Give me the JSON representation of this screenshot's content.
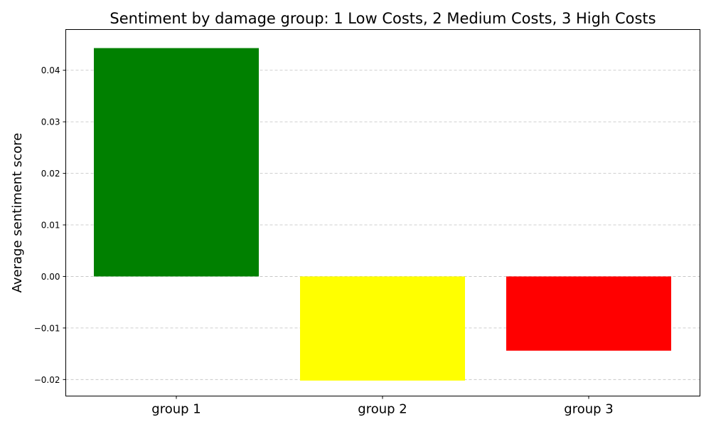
{
  "chart_data": {
    "type": "bar",
    "title": "Sentiment by damage group: 1 Low Costs, 2 Medium Costs, 3 High Costs",
    "xlabel": "",
    "ylabel": "Average sentiment score",
    "categories": [
      "group 1",
      "group 2",
      "group 3"
    ],
    "values": [
      0.0443,
      -0.0202,
      -0.0144
    ],
    "colors": [
      "#008000",
      "#ffff00",
      "#ff0000"
    ],
    "ylim": [
      -0.0232,
      0.0479
    ],
    "yticks": [
      -0.02,
      -0.01,
      0.0,
      0.01,
      0.02,
      0.03,
      0.04
    ],
    "ytick_labels": [
      "−0.02",
      "−0.01",
      "0.00",
      "0.01",
      "0.02",
      "0.03",
      "0.04"
    ],
    "grid": "y-dashed",
    "legend": "none"
  }
}
